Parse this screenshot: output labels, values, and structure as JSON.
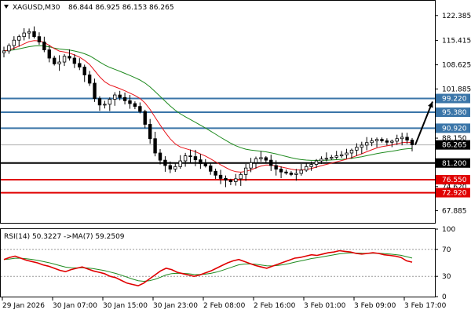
{
  "symbol_header": {
    "symbol": "XAGUSD,M30",
    "ohlc": "86.844 86.925 86.153 86.265"
  },
  "rsi_header": {
    "label": "RSI(14) 50.3227",
    "ma": "->MA(7) 59.2509"
  },
  "colors": {
    "candle": "#000000",
    "ma_fast": "#e8131a",
    "ma_slow": "#1e8a1e",
    "level_blue": "#3a75a8",
    "level_red": "#e00000",
    "level_black": "#000000",
    "rsi_line": "#e00000",
    "rsi_ma": "#1e8a1e",
    "axis_box_text": "#ffffff"
  },
  "chart_data": [
    {
      "type": "candlestick",
      "title": "",
      "y_axis_ticks": [
        "122.385",
        "115.415",
        "108.625",
        "101.885",
        "88.150",
        "74.620",
        "67.885"
      ],
      "ylim": [
        64.5,
        126.5
      ],
      "x_tick_labels": [
        "29 Jan 2026",
        "30 Jan 07:00",
        "30 Jan 15:00",
        "30 Jan 23:00",
        "2 Feb 08:00",
        "2 Feb 16:00",
        "3 Feb 01:00",
        "3 Feb 09:00",
        "3 Feb 17:00"
      ],
      "current_price": "86.265",
      "price_path": [
        112.5,
        114.0,
        115.5,
        116.5,
        117.5,
        117.9,
        116.5,
        115.0,
        112.8,
        110.5,
        108.9,
        109.4,
        111.0,
        110.5,
        109.0,
        108.0,
        105.8,
        103.5,
        99.2,
        97.4,
        97.6,
        99.0,
        100.2,
        99.5,
        98.6,
        97.8,
        97.0,
        95.6,
        92.0,
        88.0,
        84.0,
        82.0,
        80.5,
        79.5,
        80.2,
        81.8,
        83.2,
        83.0,
        82.1,
        81.0,
        80.4,
        78.9,
        77.8,
        76.9,
        76.4,
        76.0,
        76.8,
        78.0,
        79.8,
        81.3,
        82.4,
        82.7,
        82.0,
        80.5,
        79.5,
        78.7,
        78.4,
        78.0,
        78.3,
        79.2,
        80.2,
        80.8,
        81.8,
        82.3,
        82.5,
        82.8,
        83.2,
        83.5,
        84.0,
        84.8,
        85.6,
        86.2,
        86.9,
        87.4,
        87.8,
        87.4,
        87.0,
        87.3,
        88.0,
        88.4,
        87.6,
        86.3
      ],
      "levels": [
        {
          "value": "99.220",
          "color": "blue"
        },
        {
          "value": "95.380",
          "color": "blue"
        },
        {
          "value": "90.920",
          "color": "blue"
        },
        {
          "value": "81.200",
          "color": "black"
        },
        {
          "value": "76.550",
          "color": "red"
        },
        {
          "value": "72.920",
          "color": "red"
        }
      ],
      "annotation": "arrow up from 86.265 toward 99.220"
    },
    {
      "type": "line",
      "title": "",
      "y_axis_ticks": [
        "100",
        "70",
        "30",
        "0"
      ],
      "ylim": [
        0,
        100
      ],
      "reference_levels": [
        30,
        70
      ],
      "rsi_path": [
        55,
        58,
        60,
        57,
        54,
        52,
        50,
        47,
        45,
        42,
        39,
        37,
        40,
        42,
        44,
        41,
        38,
        36,
        34,
        30,
        28,
        24,
        20,
        18,
        16,
        20,
        26,
        32,
        38,
        42,
        40,
        36,
        34,
        32,
        30,
        32,
        35,
        38,
        42,
        46,
        50,
        53,
        55,
        52,
        49,
        46,
        44,
        42,
        45,
        48,
        51,
        54,
        57,
        58,
        60,
        62,
        61,
        63,
        65,
        66,
        68,
        67,
        66,
        64,
        63,
        64,
        65,
        64,
        62,
        61,
        60,
        58,
        53,
        51
      ]
    }
  ]
}
